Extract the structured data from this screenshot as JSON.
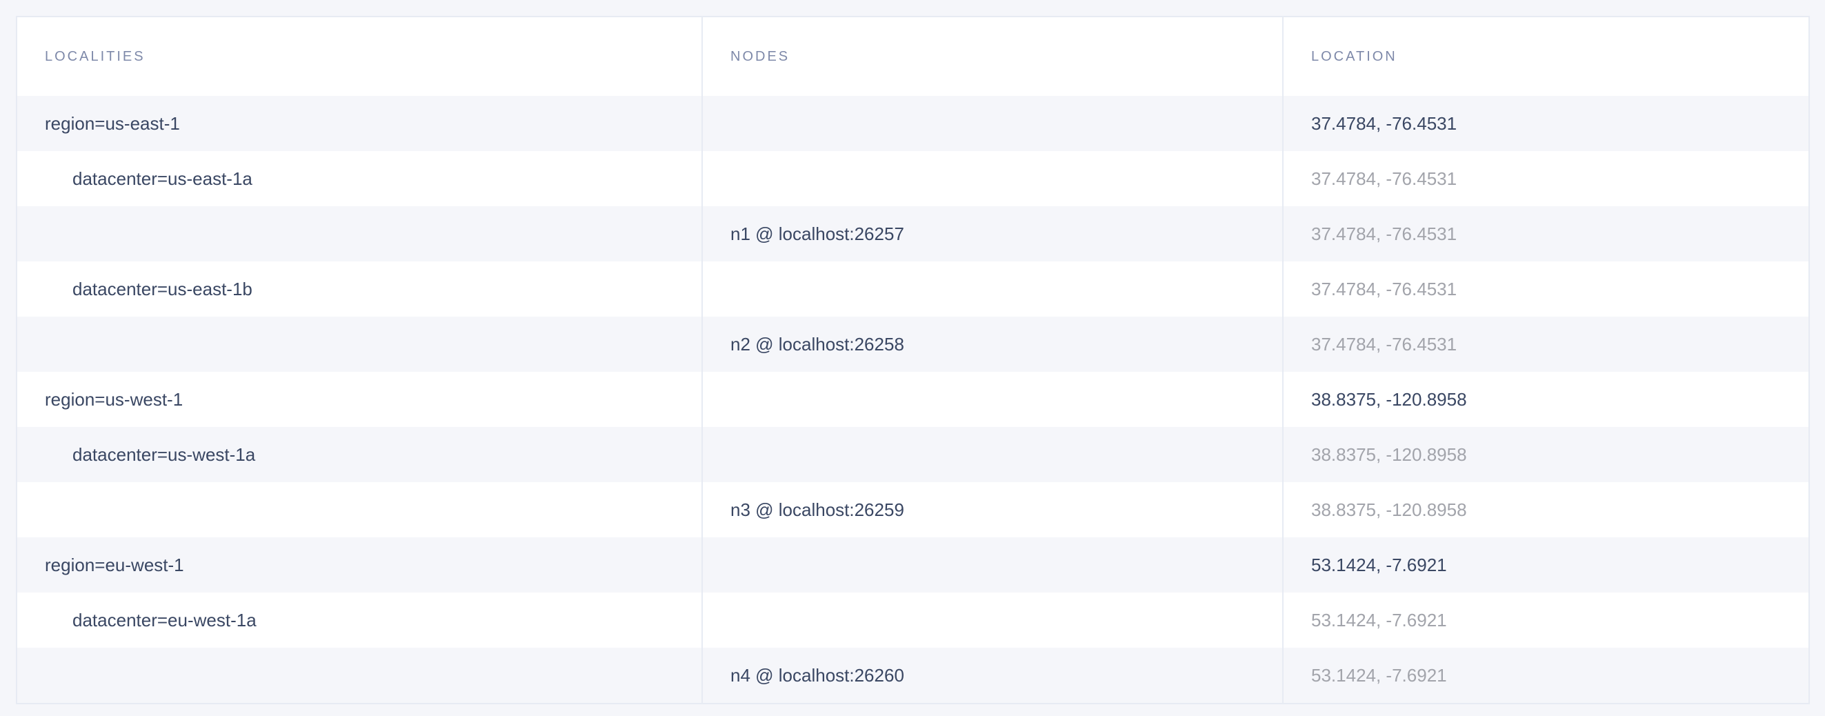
{
  "table": {
    "headers": [
      "LOCALITIES",
      "NODES",
      "LOCATION"
    ],
    "rows": [
      {
        "locality": "region=us-east-1",
        "level": 0,
        "node": "",
        "location": "37.4784, -76.4531",
        "location_muted": false
      },
      {
        "locality": "datacenter=us-east-1a",
        "level": 1,
        "node": "",
        "location": "37.4784, -76.4531",
        "location_muted": true
      },
      {
        "locality": "",
        "level": 2,
        "node": "n1 @ localhost:26257",
        "location": "37.4784, -76.4531",
        "location_muted": true
      },
      {
        "locality": "datacenter=us-east-1b",
        "level": 1,
        "node": "",
        "location": "37.4784, -76.4531",
        "location_muted": true
      },
      {
        "locality": "",
        "level": 2,
        "node": "n2 @ localhost:26258",
        "location": "37.4784, -76.4531",
        "location_muted": true
      },
      {
        "locality": "region=us-west-1",
        "level": 0,
        "node": "",
        "location": "38.8375, -120.8958",
        "location_muted": false
      },
      {
        "locality": "datacenter=us-west-1a",
        "level": 1,
        "node": "",
        "location": "38.8375, -120.8958",
        "location_muted": true
      },
      {
        "locality": "",
        "level": 2,
        "node": "n3 @ localhost:26259",
        "location": "38.8375, -120.8958",
        "location_muted": true
      },
      {
        "locality": "region=eu-west-1",
        "level": 0,
        "node": "",
        "location": "53.1424, -7.6921",
        "location_muted": false
      },
      {
        "locality": "datacenter=eu-west-1a",
        "level": 1,
        "node": "",
        "location": "53.1424, -7.6921",
        "location_muted": true
      },
      {
        "locality": "",
        "level": 2,
        "node": "n4 @ localhost:26260",
        "location": "53.1424, -7.6921",
        "location_muted": true
      }
    ]
  },
  "colors": {
    "text": "#3a4763",
    "muted": "#a2a4ab",
    "header": "#7e89a9",
    "stripe": "#f5f6fa",
    "border": "#e7ebf3"
  }
}
